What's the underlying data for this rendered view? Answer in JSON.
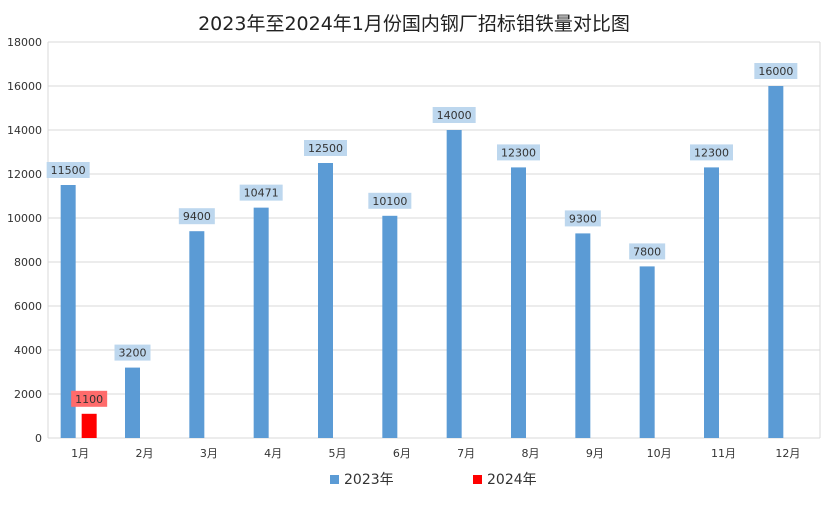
{
  "chart_data": {
    "type": "bar",
    "title": "2023年至2024年1月份国内钢厂招标钼铁量对比图",
    "categories": [
      "1月",
      "2月",
      "3月",
      "4月",
      "5月",
      "6月",
      "7月",
      "8月",
      "9月",
      "10月",
      "11月",
      "12月"
    ],
    "series": [
      {
        "name": "2023年",
        "color": "#5B9BD5",
        "label_bg": "#BDD7EE",
        "values": [
          11500,
          3200,
          9400,
          10471,
          12500,
          10100,
          14000,
          12300,
          9300,
          7800,
          12300,
          16000
        ]
      },
      {
        "name": "2024年",
        "color": "#FF0000",
        "label_bg": "#FF6B6B",
        "values": [
          1100,
          null,
          null,
          null,
          null,
          null,
          null,
          null,
          null,
          null,
          null,
          null
        ]
      }
    ],
    "ylim": [
      0,
      18000
    ],
    "yticks": [
      0,
      2000,
      4000,
      6000,
      8000,
      10000,
      12000,
      14000,
      16000,
      18000
    ],
    "xlabel": "",
    "ylabel": "",
    "grid": true,
    "legend": "bottom-center"
  }
}
